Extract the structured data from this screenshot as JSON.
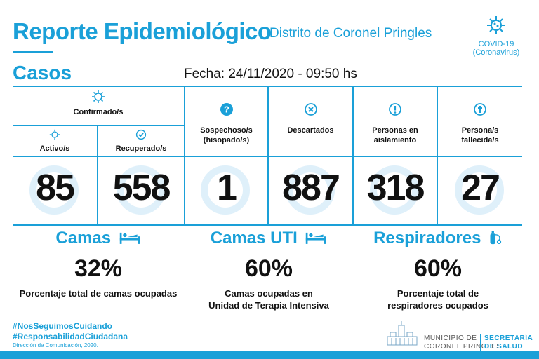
{
  "header": {
    "title": "Reporte Epidemiológico",
    "subtitle": "Distrito de Coronel Pringles",
    "covid_label": "COVID-19",
    "covid_sub": "(Coronavirus)"
  },
  "casos": {
    "title": "Casos",
    "fecha": "Fecha: 24/11/2020 - 09:50 hs",
    "confirmados_label": "Confirmado/s",
    "activo_label": "Activo/s",
    "recuperado_label": "Recuperado/s",
    "sospechoso_label_1": "Sospechoso/s",
    "sospechoso_label_2": "(hisopado/s)",
    "descartados_label": "Descartados",
    "aislamiento_label_1": "Personas en",
    "aislamiento_label_2": "aislamiento",
    "fallecida_label_1": "Persona/s",
    "fallecida_label_2": "fallecida/s",
    "activo": "85",
    "recuperado": "558",
    "sospechoso": "1",
    "descartados": "887",
    "aislamiento": "318",
    "fallecida": "27"
  },
  "camas": {
    "title": "Camas",
    "pct": "32%",
    "desc_1": "Porcentaje total de camas ocupadas",
    "desc_2": ""
  },
  "uti": {
    "title": "Camas UTI",
    "pct": "60%",
    "desc_1": "Camas ocupadas en",
    "desc_2": "Unidad de Terapia Intensiva"
  },
  "respiradores": {
    "title": "Respiradores",
    "pct": "60%",
    "desc_1": "Porcentaje total de",
    "desc_2": "respiradores ocupados"
  },
  "footer": {
    "hashtag_1": "#NosSeguimosCuidando",
    "hashtag_2": "#ResponsabilidadCiudadana",
    "direccion": "Dirección de Comunicación, 2020.",
    "muni_1": "MUNICIPIO DE",
    "muni_2": "CORONEL PRINGLES",
    "sec_1": "SECRETARÍA",
    "sec_2": "DE SALUD"
  },
  "colors": {
    "accent": "#1aa0d8",
    "text": "#111111",
    "watermark": "#dff0fa"
  },
  "icons": [
    "virus-icon",
    "check-icon",
    "question-icon",
    "x-icon",
    "exclamation-icon",
    "cross-icon",
    "bed-icon",
    "oxygen-icon"
  ]
}
